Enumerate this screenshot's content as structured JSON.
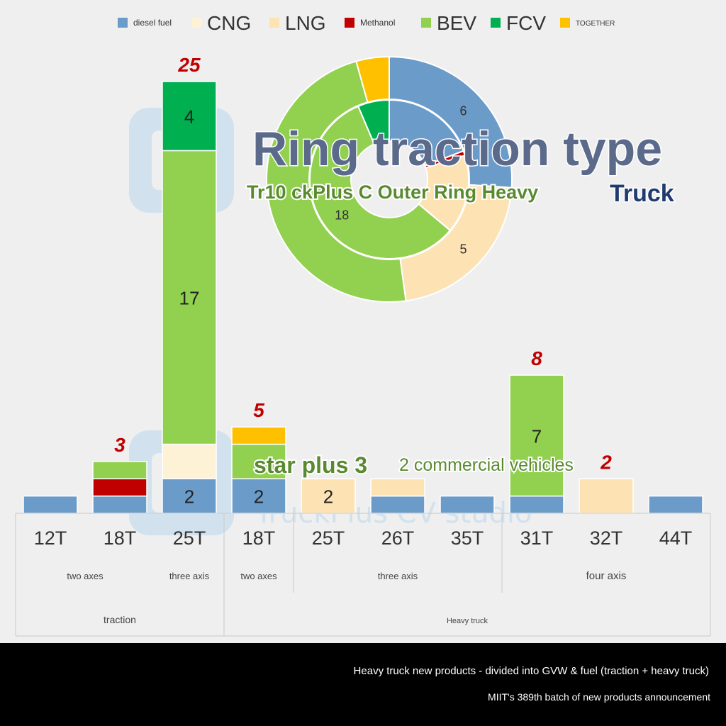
{
  "colors": {
    "diesel": "#6b9bc8",
    "cng": "#fdf1d6",
    "lng": "#fde3b4",
    "methanol": "#c00000",
    "bev": "#92d050",
    "fcv": "#00b050",
    "together": "#ffc000",
    "total_label": "#c00000",
    "title": "#5b6a8a",
    "subtitle": "#5a8a30",
    "truck": "#1f3a6e",
    "watermark": "#b9d6ec"
  },
  "chart_data": [
    {
      "type": "bar",
      "stacked": true,
      "legend": {
        "placement": "top",
        "entries": [
          {
            "key": "diesel",
            "label": "diesel fuel",
            "icon": "square"
          },
          {
            "key": "cng",
            "label": "CNG",
            "icon": "square"
          },
          {
            "key": "lng",
            "label": "LNG",
            "icon": "square"
          },
          {
            "key": "methanol",
            "label": "Methanol",
            "icon": "square"
          },
          {
            "key": "bev",
            "label": "BEV",
            "icon": "square"
          },
          {
            "key": "fcv",
            "label": "FCV",
            "icon": "square"
          },
          {
            "key": "together",
            "label": "TOGETHER",
            "icon": "square"
          }
        ]
      },
      "categories": [
        "12T",
        "18T",
        "25T",
        "18T",
        "25T",
        "26T",
        "35T",
        "31T",
        "32T",
        "44T"
      ],
      "series": [
        {
          "name": "diesel fuel",
          "key": "diesel",
          "values": [
            1,
            1,
            2,
            2,
            0,
            1,
            1,
            1,
            0,
            1
          ]
        },
        {
          "name": "CNG",
          "key": "cng",
          "values": [
            0,
            0,
            2,
            0,
            0,
            0,
            0,
            0,
            0,
            0
          ]
        },
        {
          "name": "LNG",
          "key": "lng",
          "values": [
            0,
            0,
            0,
            0,
            2,
            1,
            0,
            0,
            2,
            0
          ]
        },
        {
          "name": "Methanol",
          "key": "methanol",
          "values": [
            0,
            1,
            0,
            0,
            0,
            0,
            0,
            0,
            0,
            0
          ]
        },
        {
          "name": "BEV",
          "key": "bev",
          "values": [
            0,
            1,
            17,
            2,
            0,
            0,
            0,
            7,
            0,
            0
          ]
        },
        {
          "name": "FCV",
          "key": "fcv",
          "values": [
            0,
            0,
            4,
            0,
            0,
            0,
            0,
            0,
            0,
            0
          ]
        },
        {
          "name": "TOGETHER",
          "key": "together",
          "values": [
            0,
            0,
            0,
            1,
            0,
            0,
            0,
            0,
            0,
            0
          ]
        }
      ],
      "segment_labels": [
        {
          "category_index": 2,
          "key": "diesel",
          "text": "2"
        },
        {
          "category_index": 2,
          "key": "bev",
          "text": "17"
        },
        {
          "category_index": 2,
          "key": "fcv",
          "text": "4"
        },
        {
          "category_index": 3,
          "key": "diesel",
          "text": "2"
        },
        {
          "category_index": 4,
          "key": "lng",
          "text": "2"
        },
        {
          "category_index": 7,
          "key": "bev",
          "text": "7"
        }
      ],
      "totals": [
        {
          "category_index": 1,
          "text": "3"
        },
        {
          "category_index": 2,
          "text": "25"
        },
        {
          "category_index": 3,
          "text": "5"
        },
        {
          "category_index": 7,
          "text": "8"
        },
        {
          "category_index": 8,
          "text": "2"
        }
      ],
      "group_labels": {
        "level1": [
          {
            "label": "two axes",
            "from": 0,
            "to": 1
          },
          {
            "label": "three axis",
            "from": 2,
            "to": 2
          },
          {
            "label": "two axes",
            "from": 3,
            "to": 3
          },
          {
            "label": "three axis",
            "from": 4,
            "to": 6
          },
          {
            "label": "four axis",
            "from": 7,
            "to": 9
          }
        ],
        "level2": [
          {
            "label": "traction",
            "from": 0,
            "to": 2
          },
          {
            "label": "Heavy truck",
            "from": 3,
            "to": 9
          }
        ]
      },
      "ylim": [
        0,
        25
      ]
    },
    {
      "type": "pie",
      "variant": "double-ring",
      "outer_ring": [
        {
          "key": "diesel",
          "value": 6,
          "label": "6"
        },
        {
          "key": "lng",
          "value": 5,
          "label": "5"
        },
        {
          "key": "bev",
          "value": 11,
          "label": ""
        },
        {
          "key": "together",
          "value": 1,
          "label": ""
        }
      ],
      "inner_ring": [
        {
          "key": "diesel",
          "value": 6,
          "label": ""
        },
        {
          "key": "methanol",
          "value": 0.3,
          "label": ""
        },
        {
          "key": "lng",
          "value": 5,
          "label": ""
        },
        {
          "key": "bev",
          "value": 18,
          "label": "18"
        },
        {
          "key": "fcv",
          "value": 2,
          "label": ""
        }
      ]
    }
  ],
  "overlay": {
    "title": "Ring traction type",
    "subtitle": "Tr10 ckPlus C Outer Ring Heavy",
    "truck": "Truck",
    "mid_text_1": "star plus 3",
    "mid_text_2": "2 commercial vehicles",
    "watermark": "TruckPlus CV studio"
  },
  "footer": {
    "line1": "Heavy truck new products - divided into GVW & fuel (traction + heavy truck)",
    "line2": "MIIT's 389th batch of new products announcement"
  }
}
